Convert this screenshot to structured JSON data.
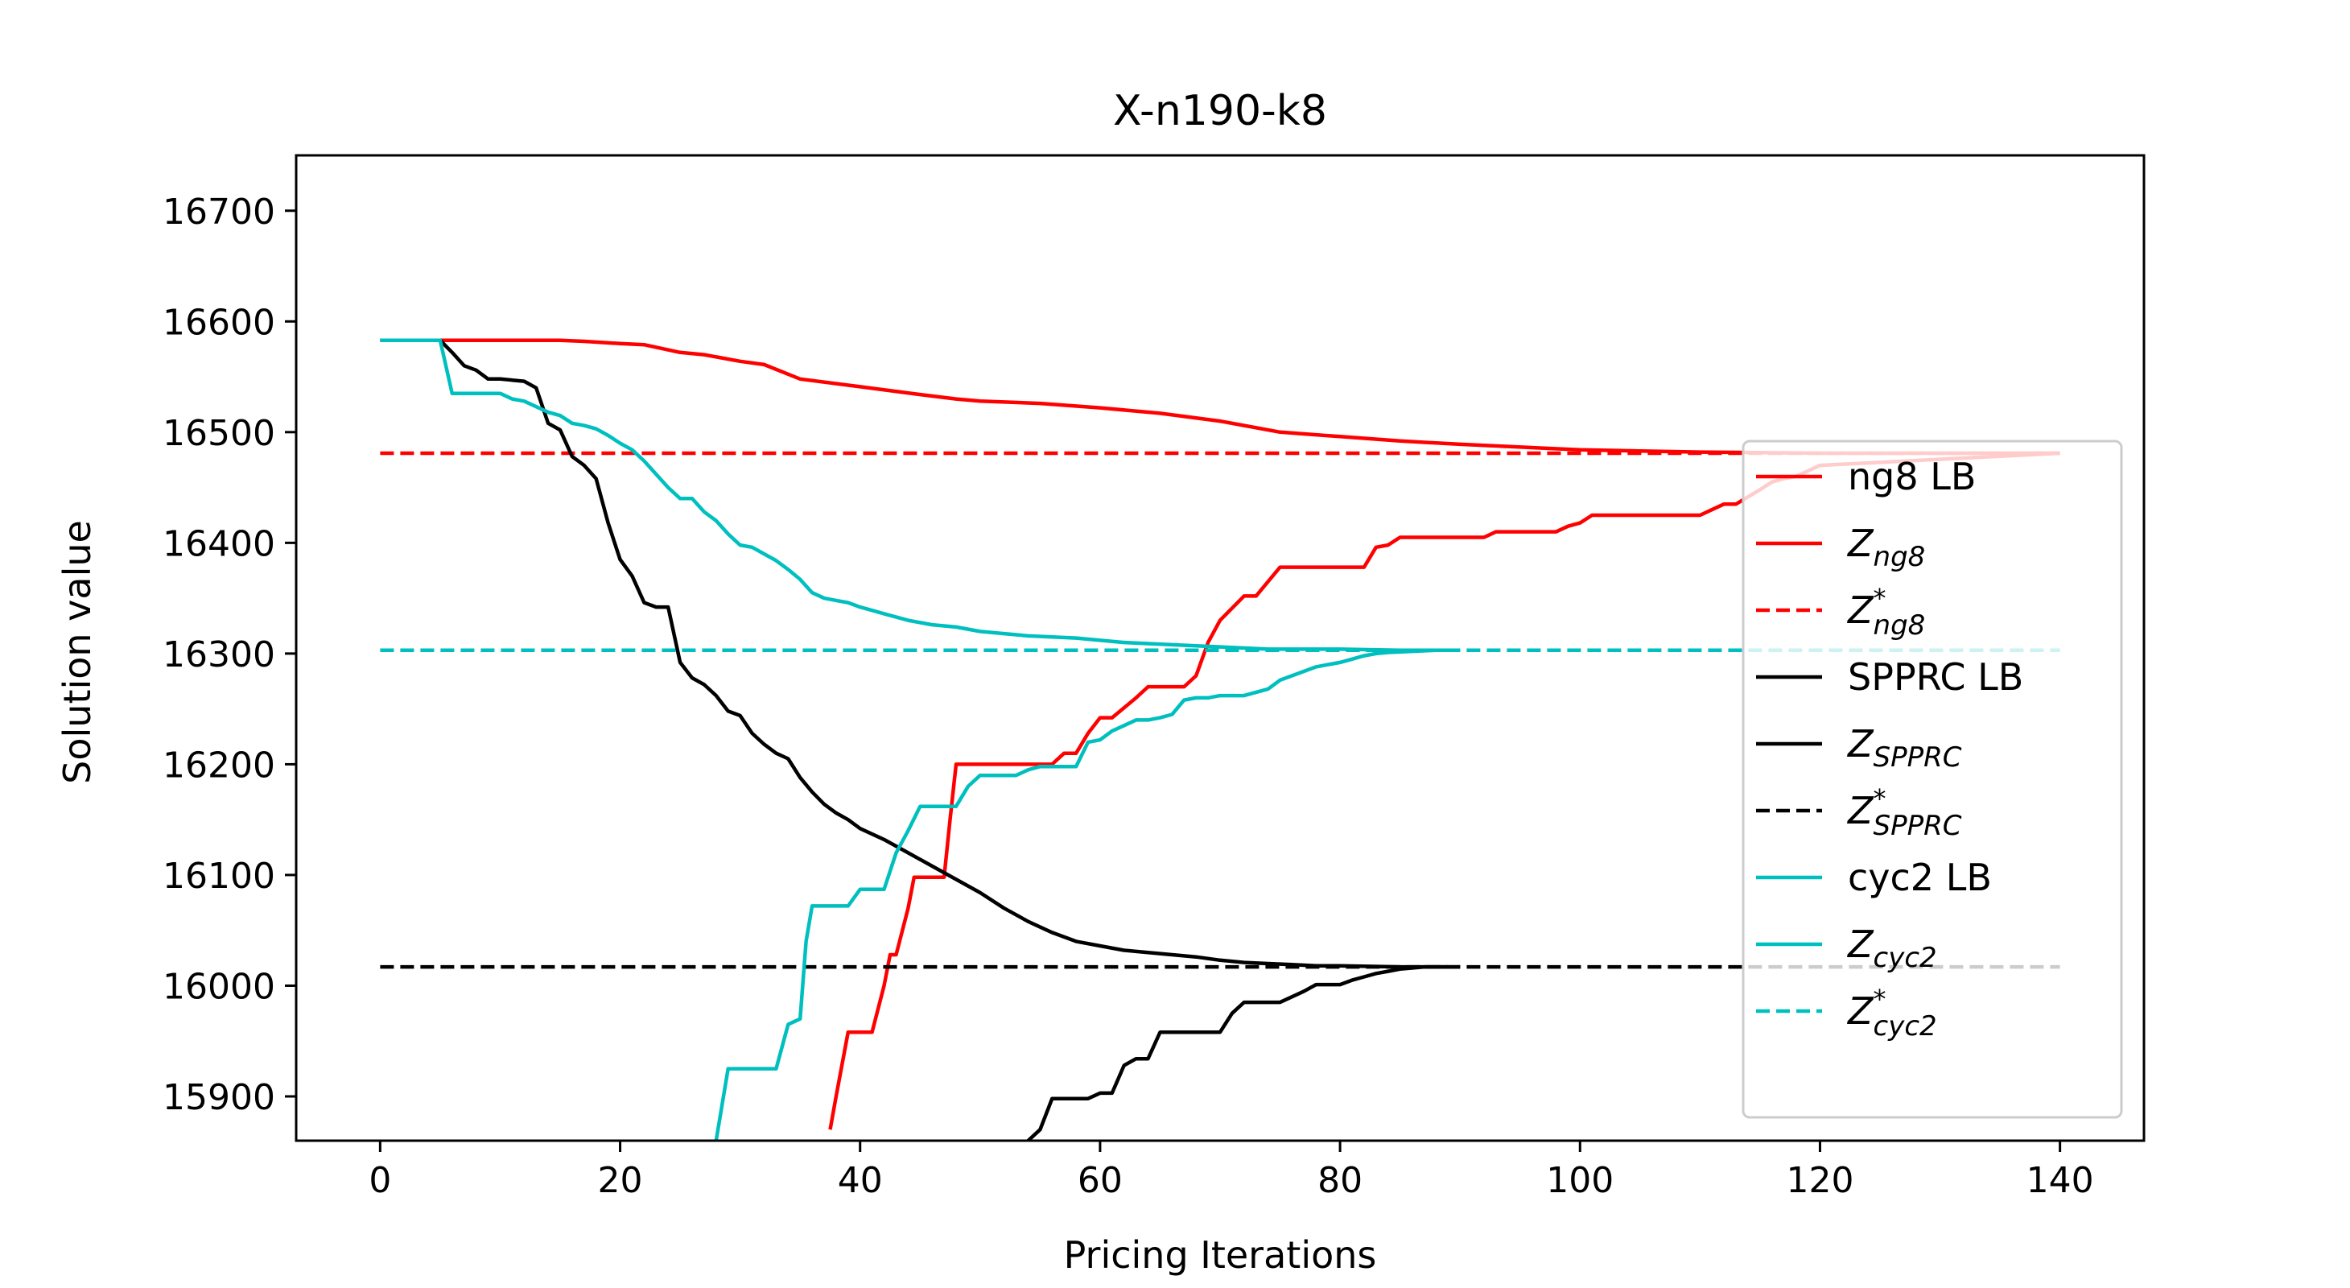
{
  "chart_data": {
    "type": "line",
    "title": "X-n190-k8",
    "xlabel": "Pricing Iterations",
    "ylabel": "Solution value",
    "xlim": [
      -7,
      147
    ],
    "ylim": [
      15860,
      16750
    ],
    "xticks": [
      0,
      20,
      40,
      60,
      80,
      100,
      120,
      140
    ],
    "yticks": [
      15900,
      16000,
      16100,
      16200,
      16300,
      16400,
      16500,
      16600,
      16700
    ],
    "xtick_labels": [
      "0",
      "20",
      "40",
      "60",
      "80",
      "100",
      "120",
      "140"
    ],
    "ytick_labels": [
      "15900",
      "16000",
      "16100",
      "16200",
      "16300",
      "16400",
      "16500",
      "16600",
      "16700"
    ],
    "legend_position": "center-right",
    "colors": {
      "red": "#ff0000",
      "black": "#000000",
      "cyan": "#00bfbf"
    },
    "series": [
      {
        "name": "ng8 LB",
        "color": "#ff0000",
        "style": "solid",
        "x": [
          0,
          5,
          10,
          15,
          17,
          20,
          22,
          25,
          27,
          30,
          32,
          35,
          40,
          45,
          48,
          50,
          55,
          60,
          65,
          70,
          75,
          80,
          85,
          90,
          100,
          110,
          120,
          130,
          140
        ],
        "y": [
          16583,
          16583,
          16583,
          16583,
          16582,
          16580,
          16579,
          16572,
          16570,
          16564,
          16561,
          16548,
          16541,
          16534,
          16530,
          16528,
          16526,
          16522,
          16517,
          16510,
          16500,
          16496,
          16492,
          16489,
          16484,
          16482,
          16481,
          16481,
          16481
        ]
      },
      {
        "name": "Z_ng8",
        "label_main": "Z",
        "label_sub": "ng8",
        "label_sup": "",
        "color": "#ff0000",
        "style": "solid",
        "x": [
          37.5,
          38,
          39,
          40,
          40.5,
          41,
          42,
          42.5,
          43,
          44,
          44.5,
          45,
          47,
          47.5,
          48,
          52,
          53,
          56,
          57,
          58,
          59,
          60,
          61,
          63,
          64,
          67,
          68,
          69,
          70,
          72,
          73,
          75,
          76,
          82,
          83,
          84,
          85,
          87,
          92,
          93,
          98,
          99,
          100,
          101,
          110,
          111,
          112,
          113,
          115,
          116,
          117,
          118,
          120,
          140
        ],
        "y": [
          15870,
          15900,
          15958,
          15958,
          15958,
          15958,
          16000,
          16028,
          16028,
          16070,
          16098,
          16098,
          16098,
          16150,
          16200,
          16200,
          16200,
          16200,
          16210,
          16210,
          16228,
          16242,
          16242,
          16260,
          16270,
          16270,
          16280,
          16310,
          16330,
          16352,
          16352,
          16378,
          16378,
          16378,
          16396,
          16398,
          16405,
          16405,
          16405,
          16410,
          16410,
          16415,
          16418,
          16425,
          16425,
          16430,
          16435,
          16435,
          16448,
          16455,
          16458,
          16460,
          16470,
          16481
        ]
      },
      {
        "name": "Z*_ng8",
        "label_main": "Z",
        "label_sub": "ng8",
        "label_sup": "*",
        "color": "#ff0000",
        "style": "dashed",
        "x": [
          0,
          140
        ],
        "y": [
          16481,
          16481
        ]
      },
      {
        "name": "SPPRC LB",
        "color": "#000000",
        "style": "solid",
        "x": [
          0,
          5,
          6,
          7,
          8,
          9,
          10,
          11,
          12,
          13,
          14,
          15,
          16,
          17,
          18,
          19,
          20,
          21,
          22,
          23,
          24,
          25,
          26,
          27,
          28,
          29,
          30,
          31,
          32,
          33,
          34,
          35,
          36,
          37,
          38,
          39,
          40,
          42,
          44,
          46,
          48,
          50,
          52,
          54,
          56,
          58,
          60,
          62,
          64,
          66,
          68,
          70,
          72,
          74,
          76,
          78,
          80,
          85,
          90
        ],
        "y": [
          16583,
          16583,
          16572,
          16560,
          16556,
          16548,
          16548,
          16547,
          16546,
          16540,
          16508,
          16502,
          16478,
          16470,
          16458,
          16418,
          16385,
          16370,
          16346,
          16342,
          16342,
          16292,
          16278,
          16272,
          16262,
          16248,
          16244,
          16228,
          16218,
          16210,
          16205,
          16188,
          16175,
          16164,
          16156,
          16150,
          16142,
          16132,
          16120,
          16108,
          16096,
          16084,
          16070,
          16058,
          16048,
          16040,
          16036,
          16032,
          16030,
          16028,
          16026,
          16023,
          16021,
          16020,
          16019,
          16018,
          16018,
          16017,
          16017
        ]
      },
      {
        "name": "Z_SPPRC",
        "label_main": "Z",
        "label_sub": "SPPRC",
        "label_sup": "",
        "color": "#000000",
        "style": "solid",
        "x": [
          54,
          55,
          56,
          57,
          58,
          59,
          60,
          61,
          62,
          63,
          64,
          65,
          66,
          67,
          68,
          69,
          70,
          71,
          72,
          73,
          74,
          75,
          76,
          77,
          78,
          79,
          80,
          81,
          82,
          83,
          84,
          85,
          86,
          87,
          88,
          89
        ],
        "y": [
          15860,
          15870,
          15898,
          15898,
          15898,
          15898,
          15903,
          15903,
          15928,
          15934,
          15934,
          15958,
          15958,
          15958,
          15958,
          15958,
          15958,
          15975,
          15985,
          15985,
          15985,
          15985,
          15990,
          15995,
          16001,
          16001,
          16001,
          16005,
          16008,
          16011,
          16013,
          16015,
          16016,
          16017,
          16017,
          16017
        ]
      },
      {
        "name": "Z*_SPPRC",
        "label_main": "Z",
        "label_sub": "SPPRC",
        "label_sup": "*",
        "color": "#000000",
        "style": "dashed",
        "x": [
          0,
          140
        ],
        "y": [
          16017,
          16017
        ]
      },
      {
        "name": "cyc2 LB",
        "color": "#00bfbf",
        "style": "solid",
        "x": [
          0,
          5,
          6,
          7,
          8,
          9,
          10,
          11,
          12,
          13,
          14,
          15,
          16,
          17,
          18,
          19,
          20,
          21,
          22,
          23,
          24,
          25,
          26,
          27,
          28,
          29,
          30,
          31,
          32,
          33,
          34,
          35,
          36,
          37,
          38,
          39,
          40,
          42,
          44,
          46,
          48,
          50,
          52,
          54,
          56,
          58,
          60,
          62,
          64,
          66,
          68,
          70,
          72,
          74,
          76,
          78,
          80,
          85,
          90
        ],
        "y": [
          16583,
          16583,
          16535,
          16535,
          16535,
          16535,
          16535,
          16530,
          16528,
          16523,
          16518,
          16515,
          16508,
          16506,
          16503,
          16497,
          16490,
          16484,
          16474,
          16462,
          16450,
          16440,
          16440,
          16428,
          16420,
          16408,
          16398,
          16396,
          16390,
          16384,
          16376,
          16367,
          16355,
          16350,
          16348,
          16346,
          16342,
          16336,
          16330,
          16326,
          16324,
          16320,
          16318,
          16316,
          16315,
          16314,
          16312,
          16310,
          16309,
          16308,
          16307,
          16306,
          16305,
          16304,
          16304,
          16304,
          16304,
          16303,
          16303
        ]
      },
      {
        "name": "Z_cyc2",
        "label_main": "Z",
        "label_sub": "cyc2",
        "label_sup": "",
        "color": "#00bfbf",
        "style": "solid",
        "x": [
          28,
          29,
          30,
          31,
          32,
          33,
          34,
          35,
          35.5,
          36,
          38,
          39,
          40,
          41,
          42,
          43,
          44,
          45,
          46,
          47,
          48,
          49,
          50,
          51,
          52,
          53,
          54,
          55,
          56,
          57,
          58,
          59,
          60,
          61,
          62,
          63,
          64,
          65,
          66,
          67,
          68,
          69,
          70,
          72,
          74,
          75,
          76,
          77,
          78,
          79,
          80,
          81,
          82,
          83,
          84,
          86,
          88,
          90
        ],
        "y": [
          15860,
          15925,
          15925,
          15925,
          15925,
          15925,
          15965,
          15970,
          16040,
          16072,
          16072,
          16072,
          16087,
          16087,
          16087,
          16120,
          16140,
          16162,
          16162,
          16162,
          16162,
          16180,
          16190,
          16190,
          16190,
          16190,
          16195,
          16198,
          16198,
          16198,
          16198,
          16220,
          16222,
          16230,
          16235,
          16240,
          16240,
          16242,
          16245,
          16258,
          16260,
          16260,
          16262,
          16262,
          16268,
          16276,
          16280,
          16284,
          16288,
          16290,
          16292,
          16295,
          16298,
          16300,
          16301,
          16302,
          16303,
          16303
        ]
      },
      {
        "name": "Z*_cyc2",
        "label_main": "Z",
        "label_sub": "cyc2",
        "label_sup": "*",
        "color": "#00bfbf",
        "style": "dashed",
        "x": [
          0,
          140
        ],
        "y": [
          16303,
          16303
        ]
      }
    ]
  }
}
